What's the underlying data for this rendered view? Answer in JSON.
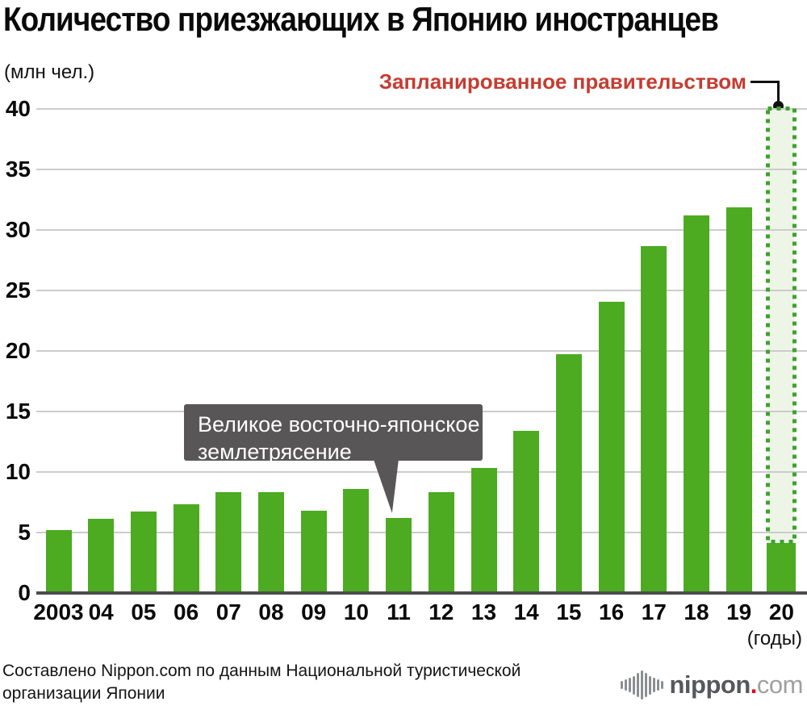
{
  "title": "Количество приезжающих в Японию иностранцев",
  "y_unit_label": "(млн чел.)",
  "x_unit_label": "(годы)",
  "planned_label": "Запланированное правительством",
  "callout": {
    "line1": "Великое восточно-японское",
    "line2": "землетрясение"
  },
  "source": {
    "line1": "Составлено Nippon.com по данным Национальной туристической",
    "line2": "организации Японии"
  },
  "logo": {
    "name": "nippon",
    "dot": ".",
    "tld": "com"
  },
  "colors": {
    "bar_green": "#4cab21",
    "plan_border_green": "#3ea32c",
    "plan_fill_green": "#edf5e7",
    "accent_red": "#c63c30",
    "callout_gray": "#585656",
    "gridline_gray": "#cccccc",
    "axis_gray": "#4d4d4d"
  },
  "chart_data": {
    "type": "bar",
    "title": "Количество приезжающих в Японию иностранцев",
    "ylabel": "(млн чел.)",
    "xlabel": "(годы)",
    "ylim": [
      0,
      40
    ],
    "yticks": [
      0,
      5,
      10,
      15,
      20,
      25,
      30,
      35,
      40
    ],
    "grid": "horizontal",
    "legend": "none",
    "categories": [
      "2003",
      "04",
      "05",
      "06",
      "07",
      "08",
      "09",
      "10",
      "11",
      "12",
      "13",
      "14",
      "15",
      "16",
      "17",
      "18",
      "19",
      "20"
    ],
    "values": [
      5.21,
      6.14,
      6.73,
      7.33,
      8.35,
      8.35,
      6.79,
      8.61,
      6.22,
      8.36,
      10.36,
      13.41,
      19.74,
      24.04,
      28.69,
      31.19,
      31.88,
      4.12
    ],
    "planned_bar": {
      "category": "20",
      "value": 40,
      "actual_value": 4.12,
      "label": "Запланированное правительством",
      "style": "dotted-outline-light-fill"
    },
    "annotation": {
      "text": "Великое восточно-японское землетрясение",
      "target_category": "11"
    }
  }
}
